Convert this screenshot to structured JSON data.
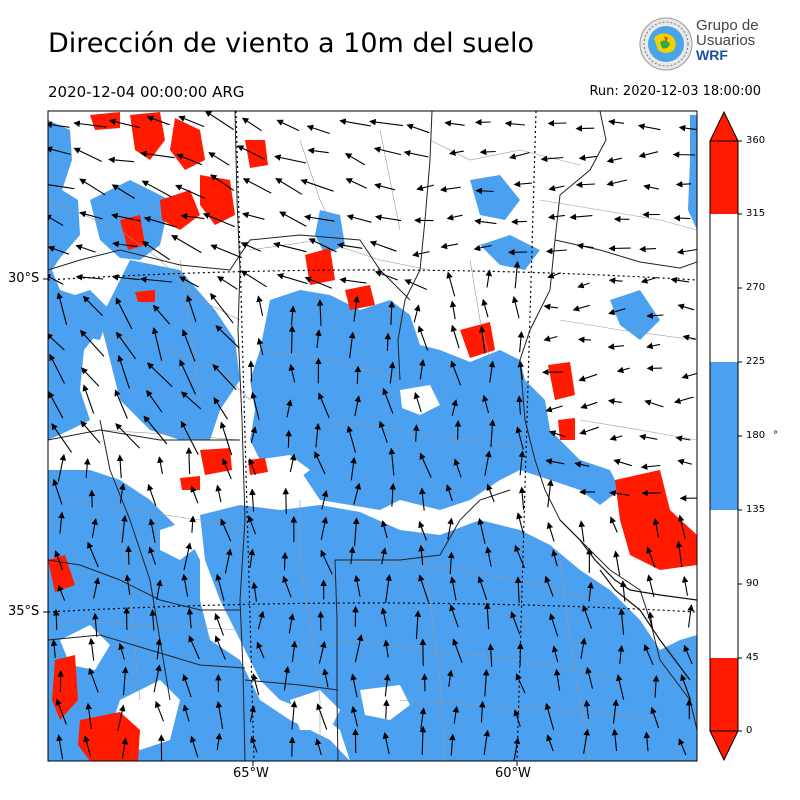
{
  "header": {
    "title": "Dirección de viento a 10m del suelo",
    "valid_time": "2020-12-04 00:00:00 ARG",
    "run_time": "Run: 2020-12-03 18:00:00"
  },
  "logo": {
    "line1": "Grupo de",
    "line2": "Usuarios",
    "line3": "WRF"
  },
  "map": {
    "lat_labels": [
      "30°S",
      "35°S"
    ],
    "lon_labels": [
      "65°W",
      "60°W"
    ]
  },
  "colorbar": {
    "ticks": [
      "360",
      "315",
      "270",
      "225",
      "180",
      "135",
      "90",
      "45",
      "0"
    ],
    "unit": "°",
    "colors": {
      "red": "#ff1a00",
      "white": "#ffffff",
      "blue": "#4ca0f0"
    },
    "bins": [
      {
        "from": 0,
        "to": 45,
        "color": "red"
      },
      {
        "from": 45,
        "to": 135,
        "color": "white"
      },
      {
        "from": 135,
        "to": 225,
        "color": "blue"
      },
      {
        "from": 225,
        "to": 315,
        "color": "white"
      },
      {
        "from": 315,
        "to": 360,
        "color": "red"
      }
    ]
  }
}
